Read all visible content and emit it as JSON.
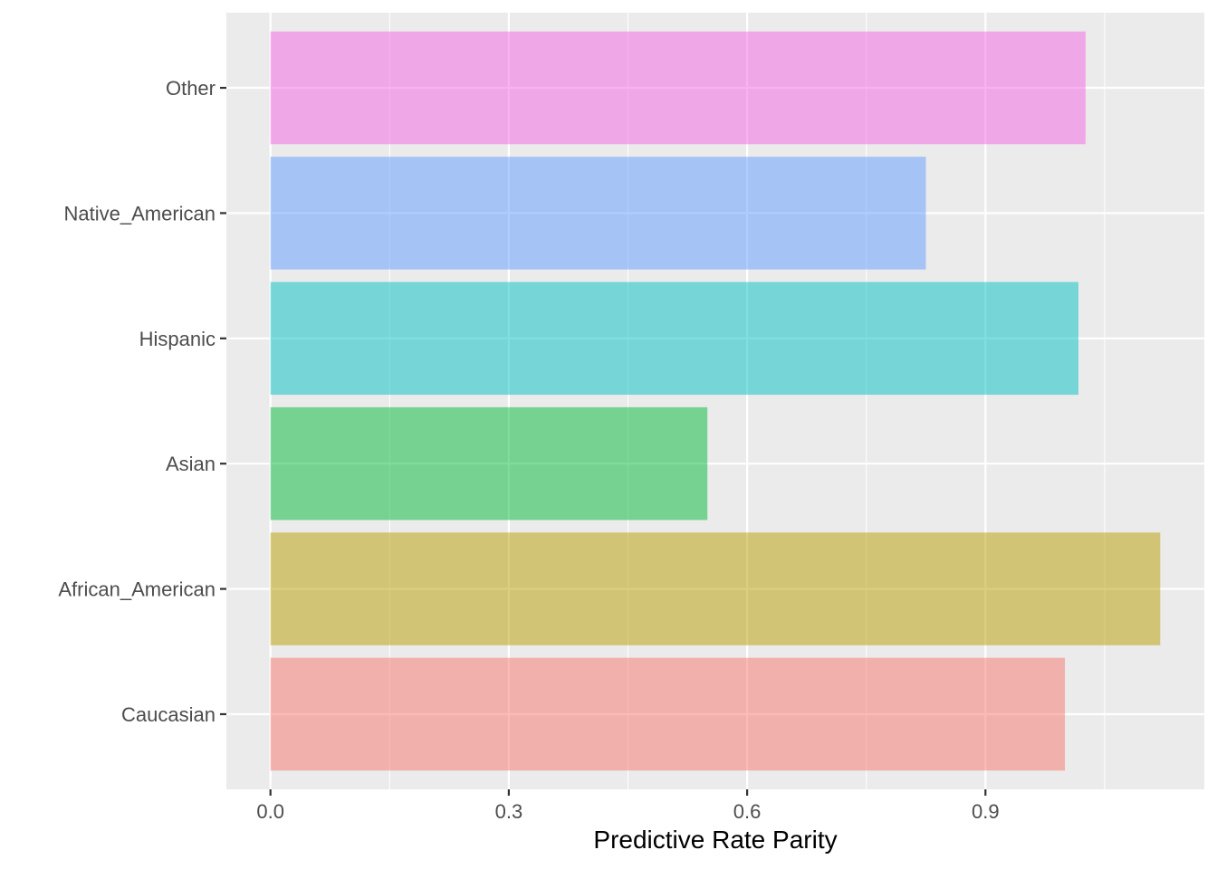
{
  "chart_data": {
    "type": "bar",
    "orientation": "horizontal",
    "categories": [
      "Caucasian",
      "African_American",
      "Asian",
      "Hispanic",
      "Native_American",
      "Other"
    ],
    "values": [
      1.0,
      1.12,
      0.55,
      1.017,
      0.825,
      1.026
    ],
    "colors": [
      "#F8766D",
      "#B79F00",
      "#00BA38",
      "#00BFC4",
      "#619CFF",
      "#F564E3"
    ],
    "bar_opacity": 0.5,
    "xlabel": "Predictive Rate Parity",
    "ylabel": "",
    "xlim": [
      -0.0555,
      1.1755
    ],
    "x_ticks": [
      0.0,
      0.3,
      0.6,
      0.9
    ],
    "x_tick_labels": [
      "0.0",
      "0.3",
      "0.6",
      "0.9"
    ],
    "grid": true,
    "panel_background": "#EBEBEB",
    "grid_color": "#FFFFFF",
    "legend": "none"
  }
}
